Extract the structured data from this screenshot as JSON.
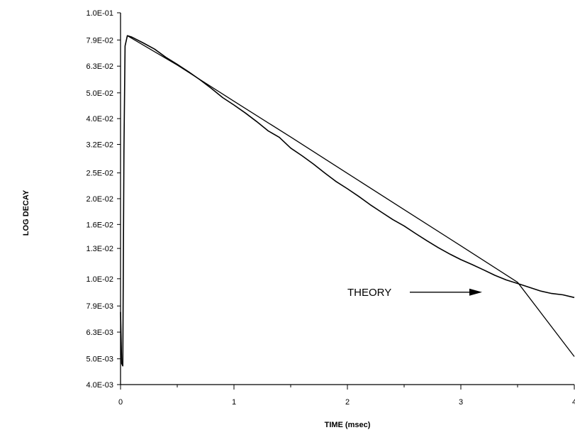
{
  "chart_data": {
    "type": "line",
    "title": "",
    "xlabel": "TIME (msec)",
    "ylabel": "LOG DECAY",
    "xlim": [
      0,
      4
    ],
    "ylim": [
      0.004,
      0.1
    ],
    "y_scale": "log",
    "grid": false,
    "x_ticks": [
      0,
      1,
      2,
      3,
      4
    ],
    "x_tick_labels": [
      "0",
      "1",
      "2",
      "3",
      "4"
    ],
    "y_ticks": [
      0.004,
      0.005,
      0.0063,
      0.0079,
      0.01,
      0.013,
      0.016,
      0.02,
      0.025,
      0.032,
      0.04,
      0.05,
      0.063,
      0.079,
      0.1
    ],
    "y_tick_labels": [
      "4.0E-03",
      "5.0E-03",
      "6.3E-03",
      "7.9E-03",
      "1.0E-02",
      "1.3E-02",
      "1.6E-02",
      "2.0E-02",
      "2.5E-02",
      "3.2E-02",
      "4.0E-02",
      "5.0E-02",
      "6.3E-02",
      "7.9E-02",
      "1.0E-01"
    ],
    "series": [
      {
        "values_x": [
          0.0,
          0.01,
          0.02,
          0.03,
          0.04,
          0.06,
          0.1,
          0.2,
          0.3,
          0.4,
          0.5,
          0.6,
          0.7,
          0.8,
          0.9,
          1.0,
          1.1,
          1.2,
          1.3,
          1.4,
          1.5,
          1.6,
          1.7,
          1.8,
          1.9,
          2.0,
          2.1,
          2.2,
          2.3,
          2.4,
          2.5,
          2.6,
          2.7,
          2.8,
          2.9,
          3.0,
          3.1,
          3.2,
          3.3,
          3.4,
          3.5,
          3.6,
          3.7,
          3.8,
          3.9,
          4.0
        ],
        "values_y": [
          0.0075,
          0.0048,
          0.0047,
          0.03,
          0.075,
          0.082,
          0.081,
          0.077,
          0.073,
          0.068,
          0.064,
          0.06,
          0.056,
          0.052,
          0.048,
          0.045,
          0.042,
          0.039,
          0.036,
          0.034,
          0.031,
          0.029,
          0.027,
          0.025,
          0.0232,
          0.0218,
          0.0204,
          0.019,
          0.0178,
          0.0167,
          0.0158,
          0.0148,
          0.0139,
          0.0131,
          0.0124,
          0.0118,
          0.0113,
          0.0108,
          0.0103,
          0.0099,
          0.0096,
          0.0093,
          0.009,
          0.0088,
          0.0087,
          0.0085
        ]
      },
      {
        "name": "THEORY",
        "values_x": [
          0.06,
          0.5,
          1.0,
          1.5,
          2.0,
          2.5,
          3.0,
          3.5,
          4.0
        ],
        "values_y": [
          0.082,
          0.0636,
          0.0465,
          0.0341,
          0.0249,
          0.0182,
          0.0133,
          0.0097,
          0.0051
        ]
      }
    ],
    "annotations": [
      {
        "text": "THEORY",
        "points_to": {
          "x": 3.2,
          "y": 0.0089
        }
      }
    ]
  }
}
